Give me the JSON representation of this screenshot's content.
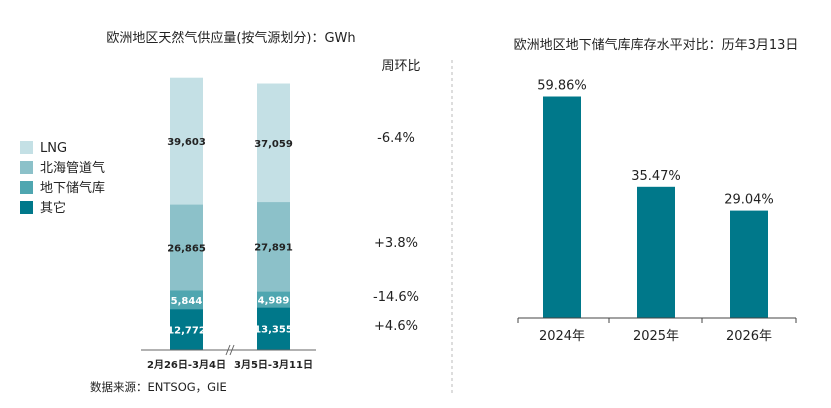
{
  "chart_data": [
    {
      "type": "bar",
      "stacked": true,
      "title": "欧洲地区天然气供应量(按气源划分)：GWh",
      "categories": [
        "2月26日-3月4日",
        "3月5日-3月11日"
      ],
      "series": [
        {
          "name": "其它",
          "values": [
            12772,
            13355
          ],
          "labels": [
            "12,772",
            "13,355"
          ],
          "color": "#00788a"
        },
        {
          "name": "地下储气库",
          "values": [
            5844,
            4989
          ],
          "labels": [
            "5,844",
            "4,989"
          ],
          "color": "#4fa6b0"
        },
        {
          "name": "北海管道气",
          "values": [
            26865,
            27891
          ],
          "labels": [
            "26,865",
            "27,891"
          ],
          "color": "#8cc1c9"
        },
        {
          "name": "LNG",
          "values": [
            39603,
            37059
          ],
          "labels": [
            "39,603",
            "37,059"
          ],
          "color": "#c4e0e5"
        }
      ],
      "legend_order": [
        "LNG",
        "北海管道气",
        "地下储气库",
        "其它"
      ],
      "legend_position": "left",
      "change_header": "周环比",
      "changes": [
        "-6.4%",
        "+3.8%",
        "-14.6%",
        "+4.6%"
      ],
      "source": "数据来源：ENTSOG，GIE"
    },
    {
      "type": "bar",
      "title": "欧洲地区地下储气库库存水平对比：历年3月13日",
      "categories": [
        "2024年",
        "2025年",
        "2026年"
      ],
      "values": [
        59.86,
        35.47,
        29.04
      ],
      "value_labels": [
        "59.86%",
        "35.47%",
        "29.04%"
      ],
      "color": "#00788a",
      "ylim": [
        0,
        65
      ]
    }
  ]
}
